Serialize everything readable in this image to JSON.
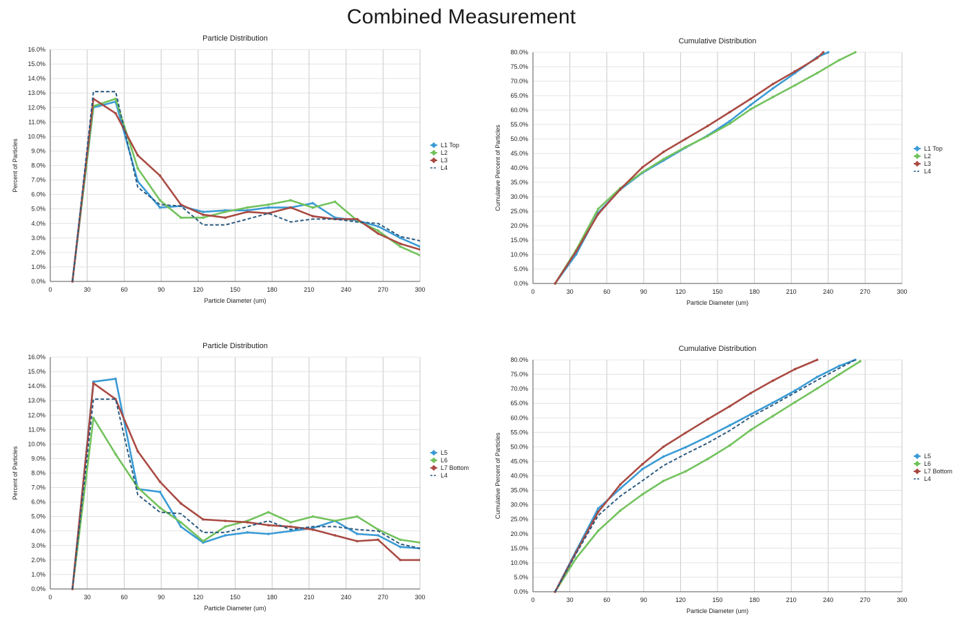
{
  "page_title": "Combined Measurement",
  "colors": {
    "blue": "#3a9bd5",
    "green": "#72c25c",
    "red": "#a94a42",
    "dash": "#2a5a80"
  },
  "chart_data": [
    {
      "type": "line",
      "title": "Particle Distribution",
      "xlabel": "Particle Diameter (um)",
      "ylabel": "Percent of Particles",
      "xlim": [
        0,
        300
      ],
      "ylim": [
        0,
        16
      ],
      "xticks": [
        "0",
        "30",
        "60",
        "90",
        "120",
        "150",
        "180",
        "210",
        "240",
        "270",
        "300"
      ],
      "yticks": [
        "0.0%",
        "1.0%",
        "2.0%",
        "3.0%",
        "4.0%",
        "5.0%",
        "6.0%",
        "7.0%",
        "8.0%",
        "9.0%",
        "10.0%",
        "11.0%",
        "12.0%",
        "13.0%",
        "14.0%",
        "15.0%",
        "16.0%"
      ],
      "legend": "right",
      "grid": true,
      "series": [
        {
          "name": "L1 Top",
          "color": "#3a9bd5",
          "style": "solid",
          "x": [
            18,
            35,
            53,
            71,
            89,
            106,
            124,
            142,
            160,
            177,
            195,
            213,
            231,
            249,
            266,
            284,
            300
          ],
          "y": [
            0.0,
            12.0,
            12.4,
            6.9,
            5.1,
            5.2,
            4.8,
            4.9,
            4.9,
            5.1,
            5.1,
            5.4,
            4.4,
            4.2,
            3.8,
            3.0,
            2.4
          ]
        },
        {
          "name": "L2",
          "color": "#72c25c",
          "style": "solid",
          "x": [
            18,
            35,
            53,
            71,
            89,
            106,
            124,
            142,
            160,
            177,
            195,
            213,
            231,
            249,
            266,
            284,
            300
          ],
          "y": [
            0.0,
            12.1,
            12.6,
            7.8,
            5.6,
            4.4,
            4.4,
            4.8,
            5.1,
            5.3,
            5.6,
            5.1,
            5.5,
            4.2,
            3.5,
            2.4,
            1.8
          ]
        },
        {
          "name": "L3",
          "color": "#a94a42",
          "style": "solid",
          "x": [
            18,
            35,
            53,
            71,
            89,
            106,
            124,
            142,
            160,
            177,
            195,
            213,
            231,
            249,
            266,
            284,
            300
          ],
          "y": [
            0.0,
            12.6,
            11.6,
            8.7,
            7.3,
            5.3,
            4.6,
            4.4,
            4.8,
            4.7,
            5.1,
            4.5,
            4.3,
            4.3,
            3.3,
            2.6,
            2.2
          ]
        },
        {
          "name": "L4",
          "color": "#2a5a80",
          "style": "dashed",
          "x": [
            18,
            35,
            53,
            71,
            89,
            106,
            124,
            142,
            160,
            177,
            195,
            213,
            231,
            249,
            266,
            284,
            300
          ],
          "y": [
            0.0,
            13.1,
            13.1,
            6.5,
            5.3,
            5.2,
            3.9,
            3.9,
            4.3,
            4.7,
            4.1,
            4.3,
            4.3,
            4.1,
            4.0,
            3.1,
            2.8
          ]
        }
      ]
    },
    {
      "type": "line",
      "title": "Cumulative Distribution",
      "xlabel": "Particle Diameter (um)",
      "ylabel": "Cumulative Percent of Particles",
      "xlim": [
        0,
        300
      ],
      "ylim": [
        0,
        80
      ],
      "xticks": [
        "0",
        "30",
        "60",
        "90",
        "120",
        "150",
        "180",
        "210",
        "240",
        "270",
        "300"
      ],
      "yticks": [
        "0.0%",
        "5.0%",
        "10.0%",
        "15.0%",
        "20.0%",
        "25.0%",
        "30.0%",
        "35.0%",
        "40.0%",
        "45.0%",
        "50.0%",
        "55.0%",
        "60.0%",
        "65.0%",
        "70.0%",
        "75.0%",
        "80.0%"
      ],
      "legend": "right",
      "grid": true,
      "series": [
        {
          "name": "L1 Top",
          "color": "#3a9bd5",
          "style": "solid",
          "x": [
            18,
            35,
            53,
            71,
            89,
            106,
            124,
            142,
            160,
            177,
            195,
            213,
            231,
            240
          ],
          "y": [
            0.0,
            10.0,
            24.5,
            32.5,
            38.3,
            42.5,
            47.0,
            51.2,
            56.2,
            61.8,
            67.5,
            72.8,
            78.3,
            80.0
          ]
        },
        {
          "name": "L2",
          "color": "#72c25c",
          "style": "solid",
          "x": [
            18,
            35,
            53,
            71,
            89,
            106,
            124,
            142,
            160,
            177,
            195,
            213,
            231,
            249,
            262
          ],
          "y": [
            0.0,
            11.5,
            25.8,
            33.0,
            38.5,
            43.0,
            47.2,
            51.0,
            55.3,
            60.3,
            64.5,
            68.6,
            72.8,
            77.3,
            80.0
          ]
        },
        {
          "name": "L3",
          "color": "#a94a42",
          "style": "solid",
          "x": [
            18,
            35,
            53,
            71,
            89,
            106,
            124,
            142,
            160,
            177,
            195,
            213,
            231,
            236
          ],
          "y": [
            0.0,
            11.0,
            24.0,
            32.6,
            40.2,
            45.5,
            50.0,
            54.5,
            59.3,
            63.9,
            69.0,
            73.4,
            78.0,
            80.0
          ]
        },
        {
          "name": "L4",
          "color": "#2a5a80",
          "style": "dashed",
          "x": [],
          "y": []
        }
      ]
    },
    {
      "type": "line",
      "title": "Particle Distribution",
      "xlabel": "Particle Diameter (um)",
      "ylabel": "Percent of Particles",
      "xlim": [
        0,
        300
      ],
      "ylim": [
        0,
        16
      ],
      "xticks": [
        "0",
        "30",
        "60",
        "90",
        "120",
        "150",
        "180",
        "210",
        "240",
        "270",
        "300"
      ],
      "yticks": [
        "0.0%",
        "1.0%",
        "2.0%",
        "3.0%",
        "4.0%",
        "5.0%",
        "6.0%",
        "7.0%",
        "8.0%",
        "9.0%",
        "10.0%",
        "11.0%",
        "12.0%",
        "13.0%",
        "14.0%",
        "15.0%",
        "16.0%"
      ],
      "legend": "right",
      "grid": true,
      "series": [
        {
          "name": "L5",
          "color": "#3a9bd5",
          "style": "solid",
          "x": [
            18,
            35,
            53,
            71,
            89,
            106,
            124,
            142,
            160,
            177,
            195,
            213,
            231,
            249,
            266,
            284,
            300
          ],
          "y": [
            0.0,
            14.3,
            14.5,
            6.9,
            6.7,
            4.3,
            3.2,
            3.7,
            3.9,
            3.8,
            4.0,
            4.2,
            4.7,
            3.8,
            3.7,
            2.9,
            2.8
          ]
        },
        {
          "name": "L6",
          "color": "#72c25c",
          "style": "solid",
          "x": [
            18,
            35,
            53,
            71,
            89,
            106,
            124,
            142,
            160,
            177,
            195,
            213,
            231,
            249,
            266,
            284,
            300
          ],
          "y": [
            0.0,
            11.8,
            9.3,
            7.0,
            5.6,
            4.6,
            3.3,
            4.3,
            4.7,
            5.3,
            4.6,
            5.0,
            4.7,
            5.0,
            4.1,
            3.4,
            3.2
          ]
        },
        {
          "name": "L7 Bottom",
          "color": "#a94a42",
          "style": "solid",
          "x": [
            18,
            35,
            53,
            71,
            89,
            106,
            124,
            142,
            160,
            177,
            195,
            213,
            231,
            249,
            266,
            284,
            300
          ],
          "y": [
            0.0,
            14.2,
            13.1,
            9.5,
            7.4,
            5.9,
            4.8,
            4.7,
            4.6,
            4.4,
            4.3,
            4.1,
            3.7,
            3.3,
            3.4,
            2.0,
            2.0
          ]
        },
        {
          "name": "L4",
          "color": "#2a5a80",
          "style": "dashed",
          "x": [
            18,
            35,
            53,
            71,
            89,
            106,
            124,
            142,
            160,
            177,
            195,
            213,
            231,
            249,
            266,
            284,
            300
          ],
          "y": [
            0.0,
            13.1,
            13.1,
            6.5,
            5.3,
            5.2,
            3.9,
            3.9,
            4.3,
            4.7,
            4.1,
            4.3,
            4.3,
            4.1,
            4.0,
            3.1,
            2.8
          ]
        }
      ]
    },
    {
      "type": "line",
      "title": "Cumulative Distribution",
      "xlabel": "Particle Diameter (um)",
      "ylabel": "Cumulative Percent of Particles",
      "xlim": [
        0,
        300
      ],
      "ylim": [
        0,
        80
      ],
      "xticks": [
        "0",
        "30",
        "60",
        "90",
        "120",
        "150",
        "180",
        "210",
        "240",
        "270",
        "300"
      ],
      "yticks": [
        "0.0%",
        "5.0%",
        "10.0%",
        "15.0%",
        "20.0%",
        "25.0%",
        "30.0%",
        "35.0%",
        "40.0%",
        "45.0%",
        "50.0%",
        "55.0%",
        "60.0%",
        "65.0%",
        "70.0%",
        "75.0%",
        "80.0%"
      ],
      "legend": "right",
      "grid": true,
      "series": [
        {
          "name": "L5",
          "color": "#3a9bd5",
          "style": "solid",
          "x": [
            18,
            35,
            53,
            71,
            89,
            106,
            124,
            142,
            160,
            177,
            195,
            213,
            231,
            249,
            262
          ],
          "y": [
            0.0,
            14.0,
            28.7,
            35.6,
            42.3,
            46.6,
            49.8,
            53.5,
            57.4,
            61.2,
            65.2,
            69.4,
            74.1,
            77.9,
            80.0
          ]
        },
        {
          "name": "L6",
          "color": "#72c25c",
          "style": "solid",
          "x": [
            18,
            35,
            53,
            71,
            89,
            106,
            124,
            142,
            160,
            177,
            195,
            213,
            231,
            249,
            266
          ],
          "y": [
            0.0,
            11.5,
            21.0,
            28.0,
            33.6,
            38.2,
            41.5,
            45.8,
            50.5,
            55.8,
            60.6,
            65.4,
            70.1,
            75.0,
            79.5
          ]
        },
        {
          "name": "L7 Bottom",
          "color": "#a94a42",
          "style": "solid",
          "x": [
            18,
            35,
            53,
            71,
            89,
            106,
            124,
            142,
            160,
            177,
            195,
            213,
            231
          ],
          "y": [
            0.0,
            13.5,
            27.5,
            37.0,
            44.0,
            50.0,
            54.8,
            59.5,
            64.0,
            68.5,
            72.8,
            76.8,
            80.0
          ]
        },
        {
          "name": "L4",
          "color": "#2a5a80",
          "style": "dashed",
          "x": [
            18,
            35,
            53,
            71,
            89,
            106,
            124,
            142,
            160,
            177,
            195,
            213,
            231,
            249,
            262
          ],
          "y": [
            0.0,
            13.1,
            26.3,
            33.0,
            38.3,
            43.5,
            47.5,
            51.3,
            55.6,
            60.3,
            64.4,
            68.7,
            73.0,
            77.1,
            80.0
          ]
        }
      ]
    }
  ]
}
